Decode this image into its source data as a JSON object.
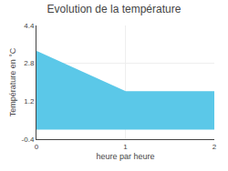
{
  "chart_data": {
    "type": "area",
    "title": "Evolution de la température",
    "x_label": "heure par heure",
    "y_label": "Température en °C",
    "x": [
      0,
      1,
      2
    ],
    "values": [
      3.3,
      1.6,
      1.6
    ],
    "color": "#5bc8e8",
    "xlim": [
      0,
      2
    ],
    "xticks": [
      0,
      1,
      2
    ],
    "ylim": [
      -0.4,
      4.4
    ],
    "yticks": [
      -0.4,
      1.2,
      2.8,
      4.4
    ],
    "grid": true
  }
}
